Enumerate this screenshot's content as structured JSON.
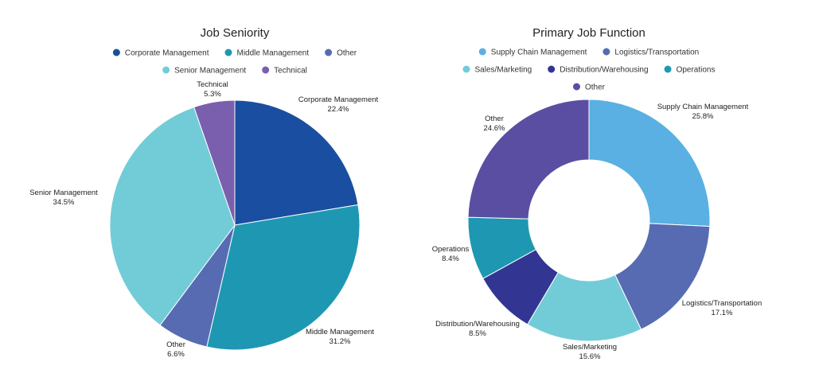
{
  "chart_data": [
    {
      "type": "pie",
      "title": "Job Seniority",
      "legend_placement": "top",
      "legend_rows": [
        [
          "Corporate Management",
          "Middle Management",
          "Other"
        ],
        [
          "Senior Management",
          "Technical"
        ]
      ],
      "categories": [
        "Corporate Management",
        "Middle Management",
        "Other",
        "Senior Management",
        "Technical"
      ],
      "values": [
        22.4,
        31.2,
        6.6,
        34.5,
        5.3
      ],
      "value_labels": [
        "22.4%",
        "31.2%",
        "6.6%",
        "34.5%",
        "5.3%"
      ],
      "colors": [
        "#1a4ea0",
        "#1e98b2",
        "#566bb2",
        "#72ccd8",
        "#7a5fae"
      ],
      "donut": false
    },
    {
      "type": "pie",
      "title": "Primary Job Function",
      "legend_placement": "top",
      "legend_rows": [
        [
          "Supply Chain Management",
          "Logistics/Transportation"
        ],
        [
          "Sales/Marketing",
          "Distribution/Warehousing",
          "Operations"
        ],
        [
          "Other"
        ]
      ],
      "categories": [
        "Supply Chain Management",
        "Logistics/Transportation",
        "Sales/Marketing",
        "Distribution/Warehousing",
        "Operations",
        "Other"
      ],
      "values": [
        25.8,
        17.1,
        15.6,
        8.5,
        8.4,
        24.6
      ],
      "value_labels": [
        "25.8%",
        "17.1%",
        "15.6%",
        "8.5%",
        "8.4%",
        "24.6%"
      ],
      "colors": [
        "#5ab0e2",
        "#566bb2",
        "#72ccd8",
        "#333593",
        "#1e98b2",
        "#5a4ea3"
      ],
      "donut": true
    }
  ]
}
